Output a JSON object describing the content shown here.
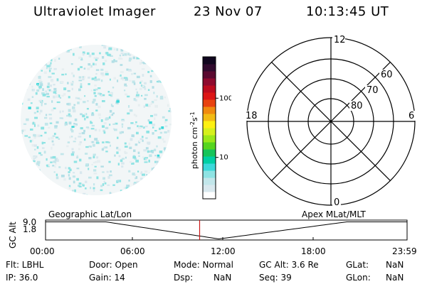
{
  "header": {
    "instrument": "Ultraviolet Imager",
    "date": "23 Nov 07",
    "time": "10:13:45 UT"
  },
  "colorbar": {
    "label": "photon cm",
    "label_exp1": "-2",
    "label_s": "s",
    "label_exp2": "-1",
    "ticks": [
      {
        "value": 100,
        "label": "100"
      },
      {
        "value": 10,
        "label": "10"
      }
    ],
    "scale": "log",
    "range": [
      2,
      500
    ],
    "colors": [
      "#ffffff",
      "#d9e8ee",
      "#c2e6ea",
      "#8ee3e3",
      "#3cd8da",
      "#00cfa4",
      "#16c45a",
      "#56d51e",
      "#9be81a",
      "#d6f01c",
      "#fdf012",
      "#f2bb14",
      "#f08a0f",
      "#e8420f",
      "#dc1515",
      "#bc0b1e",
      "#8e0a2e",
      "#5a0930",
      "#300a2e",
      "#10061e"
    ]
  },
  "polar": {
    "mlt_labels": {
      "top": "12",
      "left": "18",
      "right": "6",
      "bottom": "0"
    },
    "lat_labels": [
      "60",
      "70",
      "80"
    ]
  },
  "timeline": {
    "ylabel": "GC Alt",
    "yticks": [
      "9.0",
      "1.8"
    ],
    "left_label": "Geographic Lat/Lon",
    "right_label": "Apex MLat/MLT",
    "xticks": [
      "00:00",
      "06:00",
      "12:00",
      "18:00",
      "23:59"
    ],
    "current_time_hours": 10.23
  },
  "status": {
    "row1": {
      "flt": "Flt: LBHL",
      "door": "Door: Open",
      "mode": "Mode: Normal",
      "gcalt": "GC Alt: 3.6 Re",
      "glat_label": "GLat:",
      "glat_value": "NaN"
    },
    "row2": {
      "ip": "IP: 36.0",
      "gain": "Gain: 14",
      "dsp_label": "Dsp:",
      "dsp_value": "NaN",
      "seq": "Seq: 39",
      "glon_label": "GLon:",
      "glon_value": "NaN"
    }
  }
}
